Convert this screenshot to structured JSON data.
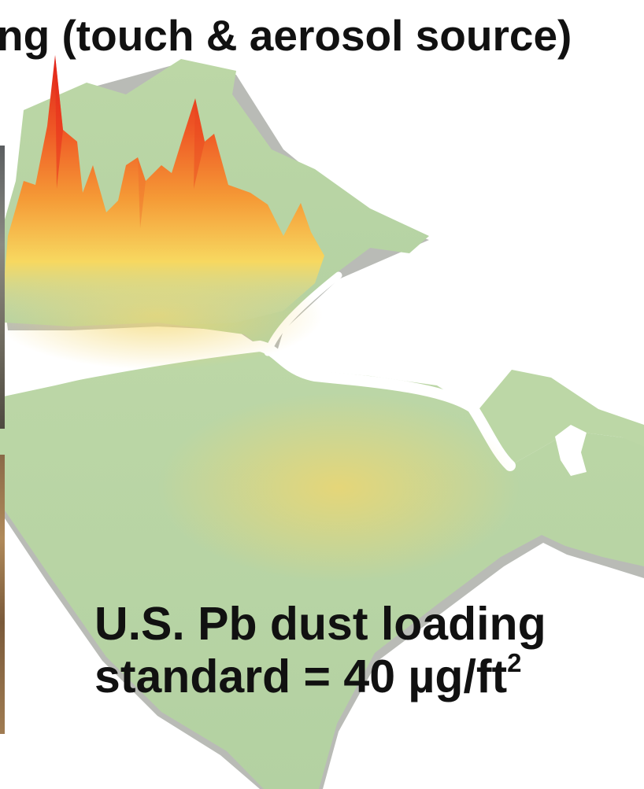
{
  "title": "ng (touch & aerosol source)",
  "map": {
    "colors": {
      "land": "#b6d3a4",
      "land_light": "#c7ddb4",
      "shadow": "#b9bbb6",
      "river": "#ffffff",
      "peak_high": "#e0201a",
      "peak_mid": "#f28a2e",
      "peak_low": "#f7d860"
    }
  },
  "standard": {
    "line1": "U.S. Pb dust loading",
    "line2_prefix": "standard = 40 µg/ft",
    "line2_sup": "2"
  }
}
